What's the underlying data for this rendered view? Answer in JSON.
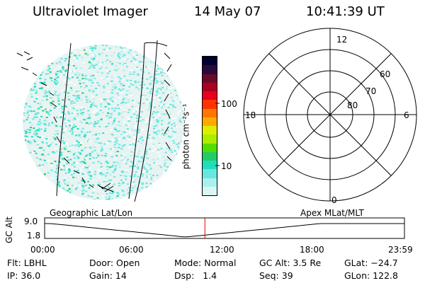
{
  "header": {
    "instrument": "Ultraviolet Imager",
    "date": "14 May 07",
    "time": "10:41:39 UT"
  },
  "colorbar": {
    "units": "photon cm⁻²s⁻¹",
    "tick_labels": [
      "100",
      "10"
    ],
    "colors": [
      "#000033",
      "#2a0a3a",
      "#6a0a2a",
      "#aa0022",
      "#e6001e",
      "#ff3300",
      "#ff7700",
      "#ffaa00",
      "#ddee00",
      "#aaee00",
      "#55dd00",
      "#22cc66",
      "#22ddbb",
      "#66e8e0",
      "#aaf0ee",
      "#d8f6f4"
    ]
  },
  "polar": {
    "mlt_labels": {
      "top": "12",
      "right": "6",
      "bottom": "0",
      "left": "18"
    },
    "lat_labels": [
      "60",
      "70",
      "80"
    ]
  },
  "timeline": {
    "ylabel": "GC Alt",
    "y_ticks": [
      "9.0",
      "1.8"
    ],
    "x_ticks": [
      "00:00",
      "06:00",
      "12:00",
      "18:00",
      "23:59"
    ],
    "left_caption": "Geographic Lat/Lon",
    "right_caption": "Apex  MLat/MLT",
    "current_time_marker_hours": 10.69
  },
  "status": {
    "flt": "Flt: LBHL",
    "ip": "IP: 36.0",
    "door": "Door: Open",
    "gain": "Gain: 14",
    "mode": "Mode: Normal",
    "dsp": "Dsp:   1.4",
    "gcalt": "GC Alt: 3.5 Re",
    "seq": "Seq: 39",
    "glat": "GLat: −24.7",
    "glon": "GLon: 122.8"
  }
}
